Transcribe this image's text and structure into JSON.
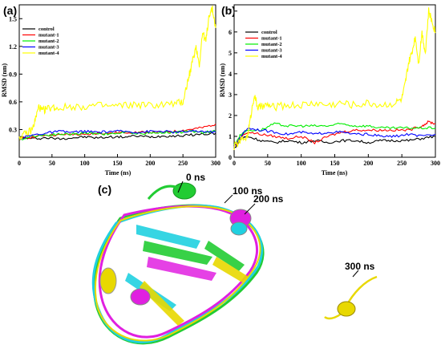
{
  "panels": {
    "a": {
      "label": "(a)"
    },
    "b": {
      "label": "(b)"
    },
    "c": {
      "label": "(c)",
      "annotations": [
        "0 ns",
        "100 ns",
        "200 ns",
        "300 ns"
      ]
    }
  },
  "legend_order": [
    "control",
    "mutant-1",
    "mutant-2",
    "mutant-3",
    "mutant-4"
  ],
  "colors": {
    "control": "#000000",
    "mutant-1": "#ff0000",
    "mutant-2": "#00ee00",
    "mutant-3": "#0000ff",
    "mutant-4": "#ffff00",
    "frame_green": "#22cc33",
    "frame_cyan": "#20d0e0",
    "frame_magenta": "#e020e0",
    "frame_yellow": "#e8d800"
  },
  "chart_data": [
    {
      "id": "a",
      "type": "line",
      "xlabel": "Time (ns)",
      "ylabel": "RMSD (nm)",
      "xlim": [
        0,
        300
      ],
      "ylim": [
        0,
        1.65
      ],
      "xticks": [
        "0",
        "50",
        "100",
        "150",
        "200",
        "250",
        "300"
      ],
      "yticks": [
        "0.3",
        "0.6",
        "0.9",
        "1.2",
        "1.5"
      ],
      "yticks_values": [
        0.3,
        0.6,
        0.9,
        1.2,
        1.5
      ],
      "legend_position": "top-left",
      "series": [
        {
          "name": "control",
          "x": [
            0,
            20,
            40,
            60,
            80,
            100,
            120,
            140,
            160,
            180,
            200,
            220,
            240,
            260,
            280,
            300
          ],
          "y": [
            0.22,
            0.2,
            0.21,
            0.2,
            0.21,
            0.22,
            0.21,
            0.22,
            0.22,
            0.23,
            0.22,
            0.23,
            0.23,
            0.24,
            0.25,
            0.26
          ]
        },
        {
          "name": "mutant-1",
          "x": [
            0,
            20,
            40,
            60,
            80,
            100,
            120,
            140,
            160,
            180,
            200,
            220,
            240,
            260,
            280,
            300
          ],
          "y": [
            0.2,
            0.22,
            0.24,
            0.24,
            0.25,
            0.24,
            0.26,
            0.26,
            0.27,
            0.27,
            0.27,
            0.27,
            0.28,
            0.3,
            0.32,
            0.36
          ]
        },
        {
          "name": "mutant-2",
          "x": [
            0,
            20,
            40,
            60,
            80,
            100,
            120,
            140,
            160,
            180,
            200,
            220,
            240,
            260,
            280,
            300
          ],
          "y": [
            0.19,
            0.23,
            0.24,
            0.25,
            0.25,
            0.26,
            0.26,
            0.25,
            0.27,
            0.26,
            0.26,
            0.27,
            0.27,
            0.28,
            0.27,
            0.28
          ]
        },
        {
          "name": "mutant-3",
          "x": [
            0,
            20,
            40,
            60,
            80,
            100,
            120,
            140,
            160,
            180,
            200,
            220,
            240,
            260,
            280,
            300
          ],
          "y": [
            0.2,
            0.24,
            0.26,
            0.28,
            0.27,
            0.28,
            0.27,
            0.28,
            0.28,
            0.27,
            0.28,
            0.28,
            0.27,
            0.28,
            0.28,
            0.27
          ]
        },
        {
          "name": "mutant-4",
          "x": [
            0,
            10,
            20,
            25,
            30,
            35,
            40,
            50,
            60,
            80,
            100,
            120,
            140,
            160,
            180,
            200,
            220,
            240,
            250,
            255,
            260,
            265,
            270,
            275,
            280,
            285,
            290,
            295,
            300
          ],
          "y": [
            0.22,
            0.25,
            0.3,
            0.42,
            0.55,
            0.5,
            0.52,
            0.54,
            0.53,
            0.55,
            0.55,
            0.56,
            0.55,
            0.56,
            0.57,
            0.56,
            0.57,
            0.58,
            0.6,
            0.75,
            0.9,
            1.05,
            1.2,
            1.0,
            1.35,
            1.25,
            1.55,
            1.6,
            1.4
          ]
        }
      ]
    },
    {
      "id": "b",
      "type": "line",
      "xlabel": "Time (ns)",
      "ylabel": "RMSD (nm)",
      "xlim": [
        0,
        300
      ],
      "ylim": [
        0,
        7.3
      ],
      "xticks": [
        "0",
        "50",
        "100",
        "150",
        "200",
        "250",
        "300"
      ],
      "yticks": [
        "0",
        "1",
        "2",
        "3",
        "4",
        "5",
        "6",
        "7"
      ],
      "yticks_values": [
        0,
        1,
        2,
        3,
        4,
        5,
        6,
        7
      ],
      "legend_position": "top-left",
      "series": [
        {
          "name": "control",
          "x": [
            0,
            10,
            20,
            40,
            60,
            80,
            100,
            120,
            140,
            160,
            180,
            200,
            220,
            240,
            260,
            280,
            300
          ],
          "y": [
            0.4,
            0.9,
            1.0,
            0.8,
            0.7,
            0.8,
            0.7,
            0.8,
            0.7,
            0.8,
            0.8,
            0.7,
            0.8,
            0.8,
            0.8,
            0.9,
            1.0
          ]
        },
        {
          "name": "mutant-1",
          "x": [
            0,
            10,
            20,
            40,
            60,
            80,
            100,
            120,
            140,
            160,
            180,
            200,
            220,
            240,
            260,
            280,
            290,
            300
          ],
          "y": [
            0.5,
            1.0,
            1.2,
            1.1,
            1.0,
            0.9,
            1.0,
            0.7,
            1.0,
            1.2,
            1.3,
            1.3,
            1.3,
            1.3,
            1.3,
            1.5,
            1.7,
            1.6
          ]
        },
        {
          "name": "mutant-2",
          "x": [
            0,
            10,
            20,
            40,
            60,
            80,
            100,
            120,
            140,
            160,
            180,
            200,
            220,
            240,
            260,
            280,
            300
          ],
          "y": [
            0.6,
            1.1,
            1.3,
            1.3,
            1.6,
            1.5,
            1.5,
            1.5,
            1.5,
            1.6,
            1.5,
            1.5,
            1.4,
            1.4,
            1.4,
            1.4,
            1.4
          ]
        },
        {
          "name": "mutant-3",
          "x": [
            0,
            10,
            20,
            40,
            60,
            80,
            100,
            120,
            140,
            160,
            180,
            200,
            220,
            240,
            260,
            280,
            300
          ],
          "y": [
            0.5,
            1.0,
            1.4,
            1.3,
            1.2,
            1.1,
            1.2,
            1.1,
            1.2,
            1.2,
            1.1,
            1.1,
            1.0,
            1.0,
            1.1,
            1.0,
            1.1
          ]
        },
        {
          "name": "mutant-4",
          "x": [
            0,
            10,
            20,
            25,
            30,
            35,
            40,
            50,
            60,
            80,
            100,
            120,
            140,
            160,
            180,
            200,
            220,
            240,
            250,
            255,
            260,
            265,
            270,
            275,
            280,
            285,
            290,
            295,
            300
          ],
          "y": [
            0.5,
            0.8,
            1.0,
            2.0,
            3.0,
            2.4,
            2.4,
            2.5,
            2.4,
            2.5,
            2.5,
            2.6,
            2.5,
            2.6,
            2.5,
            2.6,
            2.5,
            2.6,
            2.8,
            3.5,
            4.5,
            5.0,
            5.8,
            4.5,
            6.0,
            5.0,
            7.0,
            6.5,
            6.0
          ]
        }
      ]
    }
  ]
}
